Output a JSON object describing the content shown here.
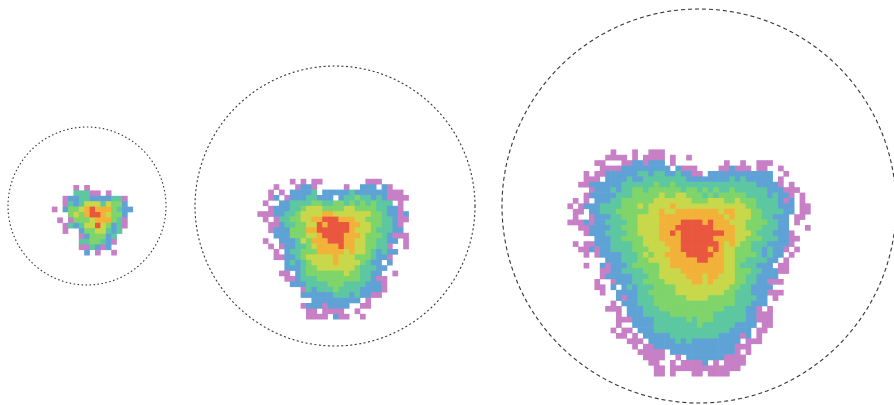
{
  "figure": {
    "palette": {
      "outer_fringe": "#c77fc6",
      "edge": "#5fa3d6",
      "mid_outer": "#5cc7a0",
      "mid": "#7fd46a",
      "mid_inner": "#c8d84a",
      "inner": "#f2b23a",
      "core": "#e9573f"
    },
    "clusters": [
      {
        "label": "small",
        "border_style": "dotted",
        "relative_extent": 0.35,
        "growth_stage": 1
      },
      {
        "label": "medium",
        "border_style": "dotted",
        "relative_extent": 0.65,
        "growth_stage": 2
      },
      {
        "label": "large",
        "border_style": "dashed",
        "relative_extent": 1.0,
        "growth_stage": 3
      }
    ]
  }
}
